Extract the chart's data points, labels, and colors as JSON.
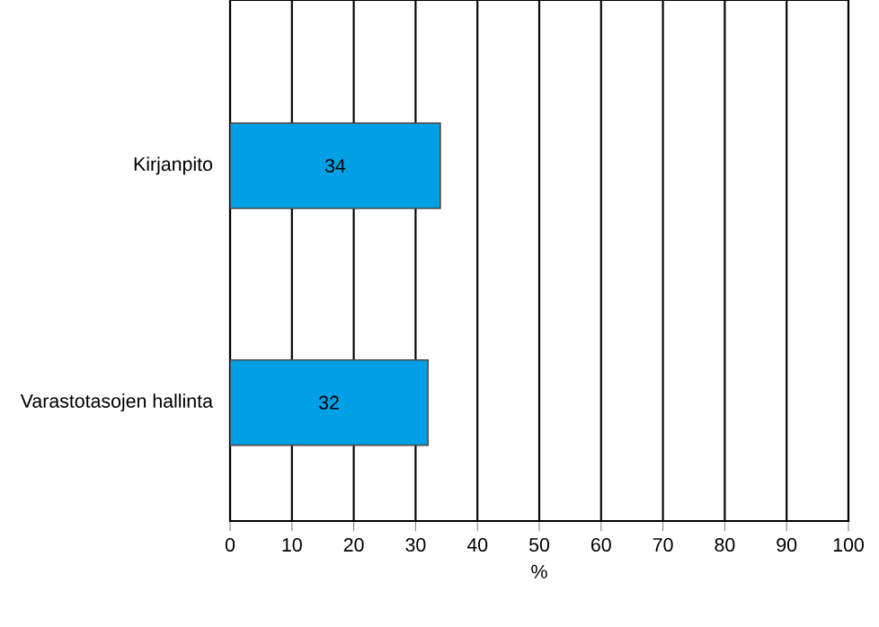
{
  "chart_data": {
    "type": "bar",
    "orientation": "horizontal",
    "xlabel": "%",
    "categories": [
      "Kirjanpito",
      "Varastotasojen hallinta"
    ],
    "values": [
      34,
      32
    ],
    "color": "#00a0e6",
    "data_labels": true,
    "xlim": [
      0,
      100
    ],
    "xticks": [
      0,
      10,
      20,
      30,
      40,
      50,
      60,
      70,
      80,
      90,
      100
    ],
    "grid": "x"
  }
}
